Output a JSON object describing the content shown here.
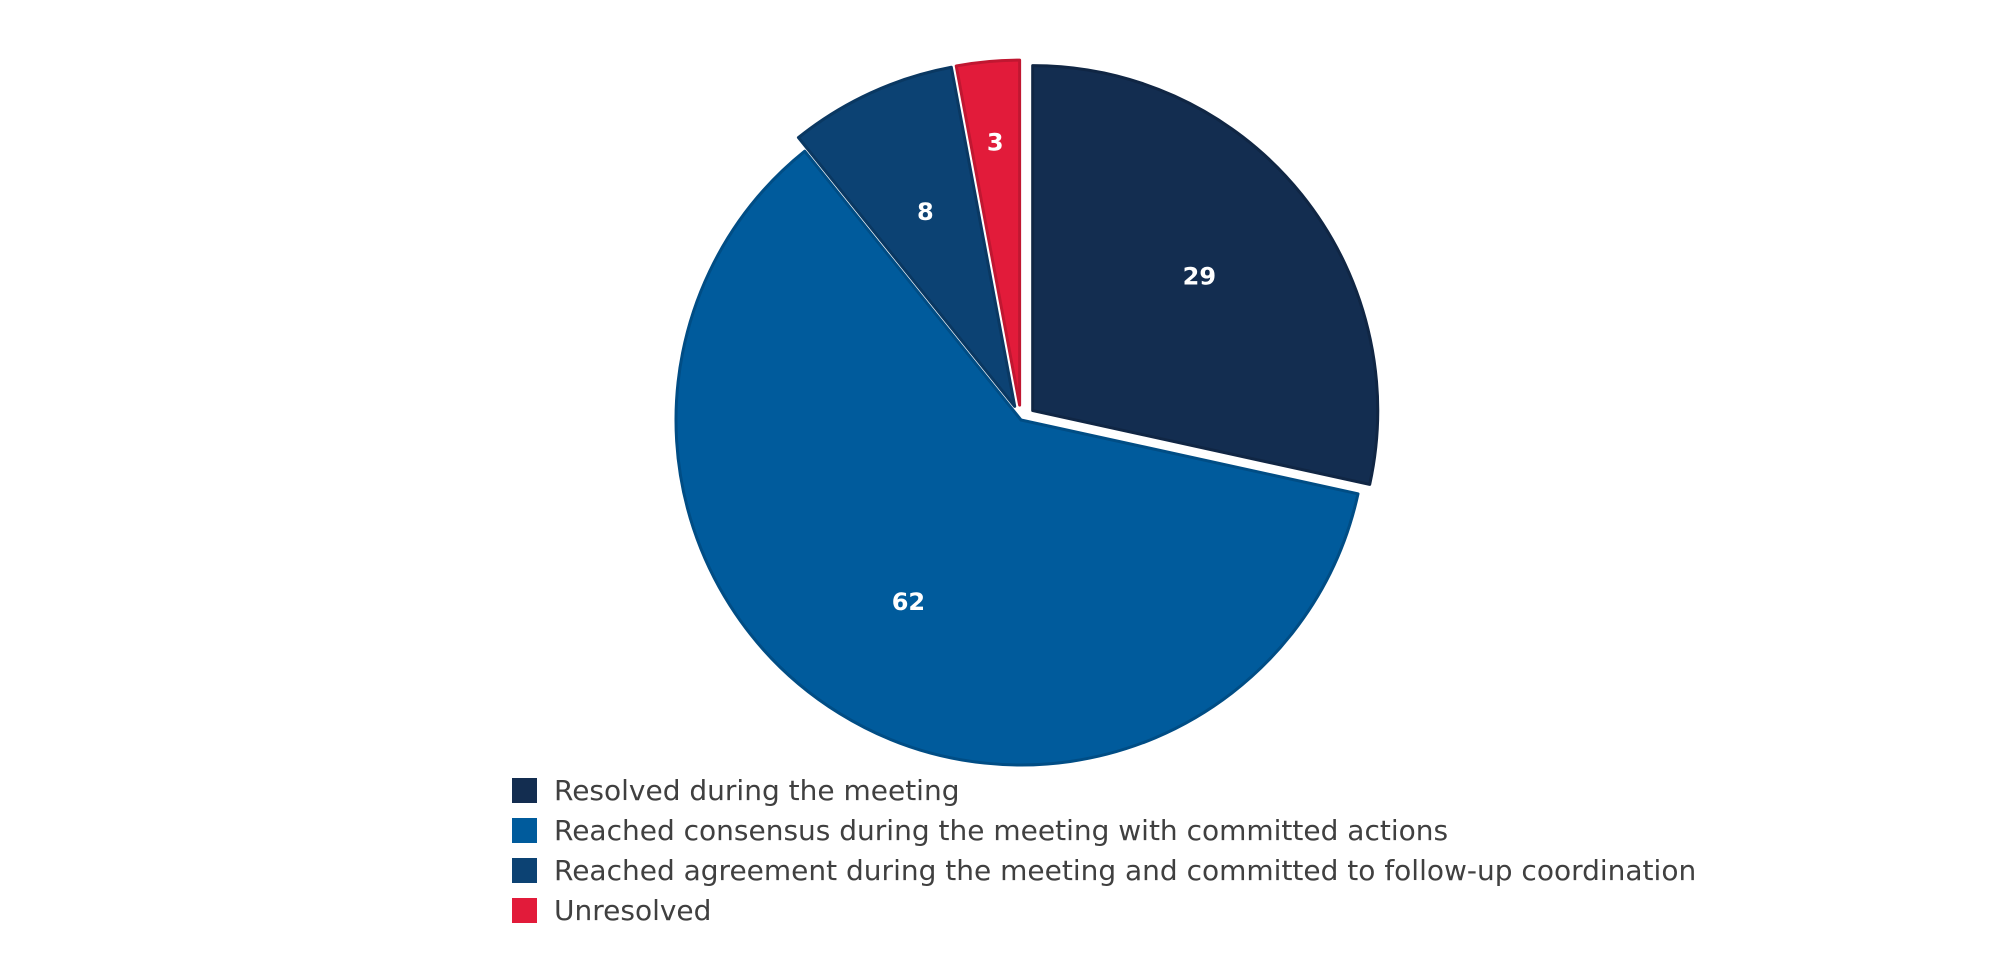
{
  "chart_data": {
    "type": "pie",
    "start_angle": "12 o'clock",
    "direction": "clockwise",
    "data_labels": "inside slices",
    "legend_position": "bottom",
    "slices": [
      {
        "label": "Resolved during the meeting",
        "value": 29,
        "color": "#132D50",
        "exploded": true
      },
      {
        "label": "Reached consensus during the meeting with committed actions",
        "value": 62,
        "color": "#005B9C",
        "exploded": false
      },
      {
        "label": "Reached agreement during the meeting and committed to follow-up coordination",
        "value": 8,
        "color": "#0C4273",
        "exploded": true
      },
      {
        "label": "Unresolved",
        "value": 3,
        "color": "#E21B3A",
        "exploded": true
      }
    ]
  }
}
